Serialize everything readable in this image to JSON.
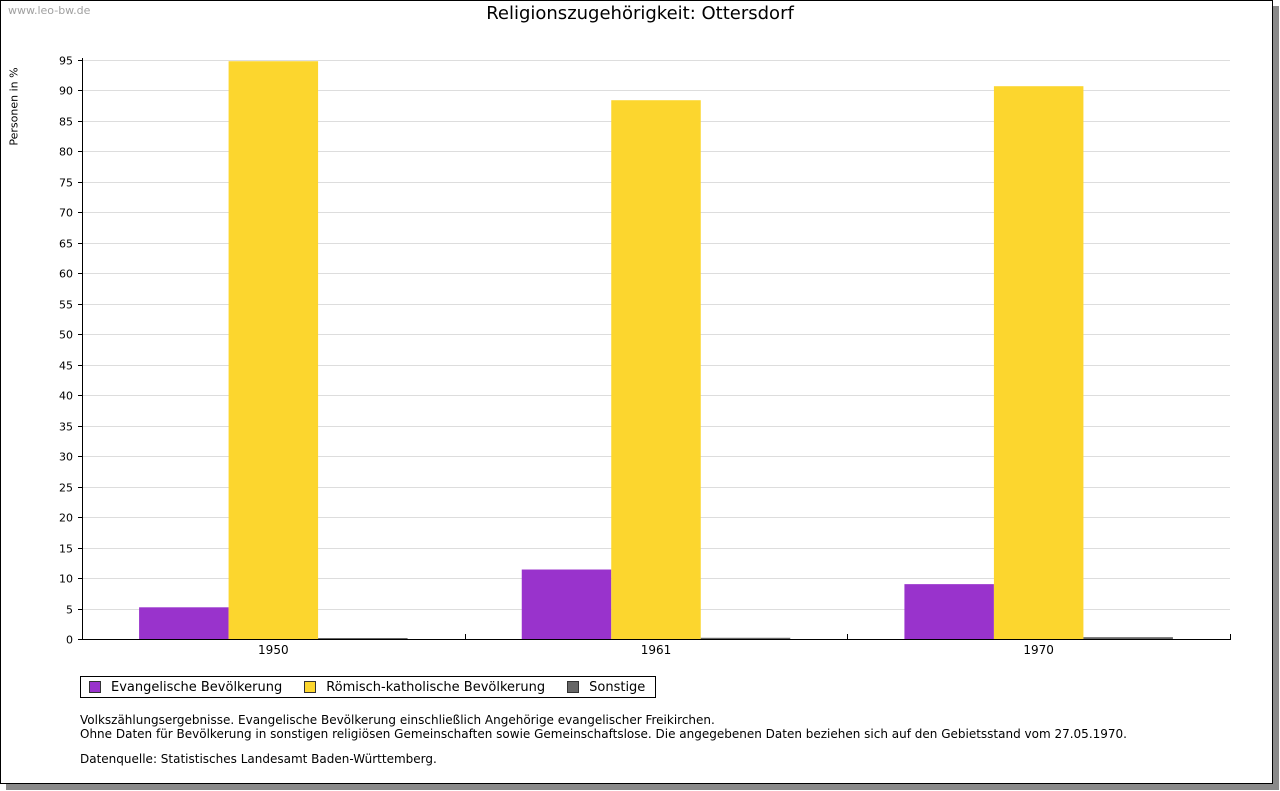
{
  "watermark": "www.leo-bw.de",
  "colors": {
    "evangelisch": "#9933cc",
    "katholisch": "#fcd62e",
    "sonstige": "#666666",
    "grid": "#dddddd"
  },
  "chart_data": {
    "type": "bar",
    "title": "Religionszugehörigkeit: Ottersdorf",
    "xlabel": "",
    "ylabel": "Personen in %",
    "ylim": [
      0,
      95
    ],
    "ytick_step": 5,
    "yticks": [
      "0",
      "5",
      "10",
      "15",
      "20",
      "25",
      "30",
      "35",
      "40",
      "45",
      "50",
      "55",
      "60",
      "65",
      "70",
      "75",
      "80",
      "85",
      "90",
      "95"
    ],
    "grid": true,
    "legend_position": "bottom-left",
    "categories": [
      "1950",
      "1961",
      "1970"
    ],
    "series": [
      {
        "name": "Evangelische Bevölkerung",
        "color": "#9933cc",
        "values": [
          5.2,
          11.4,
          9.0
        ]
      },
      {
        "name": "Römisch-katholische Bevölkerung",
        "color": "#fcd62e",
        "values": [
          94.8,
          88.4,
          90.7
        ]
      },
      {
        "name": "Sonstige",
        "color": "#666666",
        "values": [
          0.1,
          0.2,
          0.3
        ]
      }
    ]
  },
  "notes": [
    "Volkszählungsergebnisse. Evangelische Bevölkerung einschließlich Angehörige evangelischer Freikirchen.",
    "Ohne Daten für Bevölkerung in sonstigen religiösen Gemeinschaften sowie Gemeinschaftslose. Die angegebenen Daten beziehen sich auf den Gebietsstand vom 27.05.1970."
  ],
  "source": "Datenquelle: Statistisches Landesamt Baden-Württemberg."
}
